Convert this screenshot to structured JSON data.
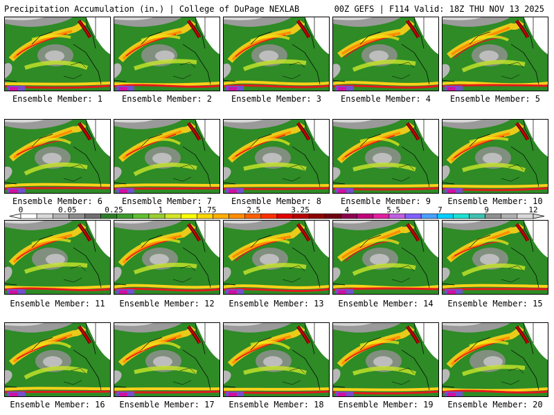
{
  "header": {
    "left": "Precipitation Accumulation (in.) | College of DuPage NEXLAB",
    "right": "00Z GEFS | F114 Valid: 18Z THU NOV 13 2025"
  },
  "members": [
    "Ensemble Member: 1",
    "Ensemble Member: 2",
    "Ensemble Member: 3",
    "Ensemble Member: 4",
    "Ensemble Member: 5",
    "Ensemble Member: 6",
    "Ensemble Member: 7",
    "Ensemble Member: 8",
    "Ensemble Member: 9",
    "Ensemble Member: 10",
    "Ensemble Member: 11",
    "Ensemble Member: 12",
    "Ensemble Member: 13",
    "Ensemble Member: 14",
    "Ensemble Member: 15",
    "Ensemble Member: 16",
    "Ensemble Member: 17",
    "Ensemble Member: 18",
    "Ensemble Member: 19",
    "Ensemble Member: 20"
  ],
  "colorbar": {
    "ticks": [
      "0",
      "0.05",
      "0.25",
      "1",
      "1.75",
      "2.5",
      "3.25",
      "4",
      "5.5",
      "7",
      "9",
      "12"
    ],
    "colors": [
      "#ffffff",
      "#d9d9d9",
      "#b3b3b3",
      "#8c8c8c",
      "#6e6e6e",
      "#2f7d2a",
      "#3f9a2e",
      "#5fbf2f",
      "#9acd32",
      "#d4e62a",
      "#ffff00",
      "#ffd700",
      "#ffb000",
      "#ff8c00",
      "#ff6000",
      "#ff3000",
      "#e00000",
      "#b40000",
      "#8b0000",
      "#700010",
      "#8b0050",
      "#c0007a",
      "#e020a0",
      "#c060e0",
      "#8060ff",
      "#4aa0ff",
      "#00d0ff",
      "#20e0d0",
      "#40c0b0",
      "#909090",
      "#b0b0b0",
      "#d8d8d8"
    ]
  }
}
